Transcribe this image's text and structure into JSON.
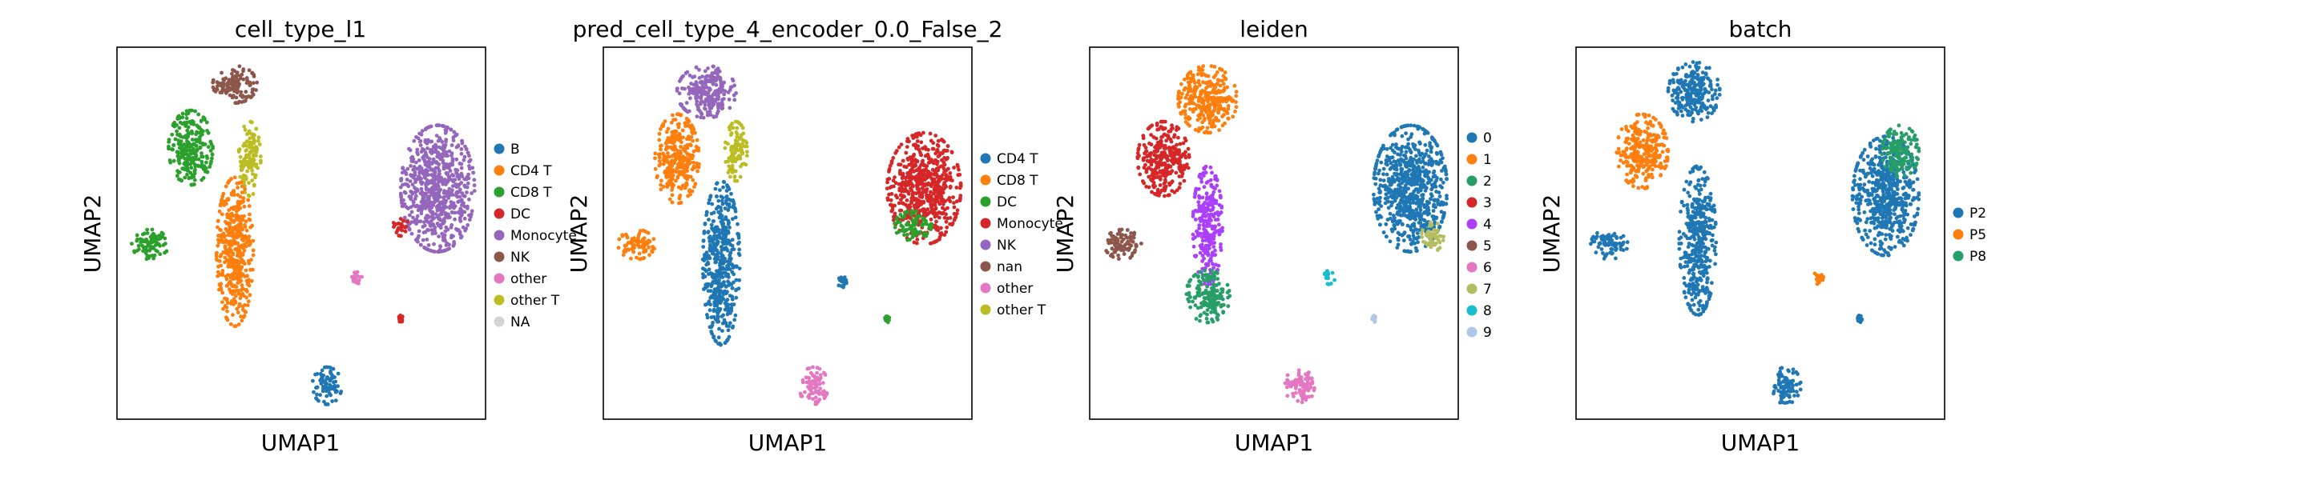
{
  "chart_data": [
    {
      "type": "scatter",
      "title": "cell_type_l1",
      "xlabel": "UMAP1",
      "ylabel": "UMAP2",
      "legend": "right",
      "grid": false,
      "categories": [
        {
          "name": "B",
          "color": "#1f77b4"
        },
        {
          "name": "CD4 T",
          "color": "#ff7f0e"
        },
        {
          "name": "CD8 T",
          "color": "#2ca02c"
        },
        {
          "name": "DC",
          "color": "#d62728"
        },
        {
          "name": "Monocyte",
          "color": "#9467bd"
        },
        {
          "name": "NK",
          "color": "#8c564b"
        },
        {
          "name": "other",
          "color": "#e377c2"
        },
        {
          "name": "other T",
          "color": "#bcbd22"
        },
        {
          "name": "NA",
          "color": "#d3d3d3"
        }
      ],
      "clusters": [
        {
          "label": "NK",
          "x": 0.32,
          "y": 0.9,
          "rx": 0.06,
          "ry": 0.05
        },
        {
          "label": "CD8 T",
          "x": 0.2,
          "y": 0.73,
          "rx": 0.06,
          "ry": 0.1
        },
        {
          "label": "other T",
          "x": 0.36,
          "y": 0.7,
          "rx": 0.03,
          "ry": 0.1
        },
        {
          "label": "CD4 T",
          "x": 0.32,
          "y": 0.45,
          "rx": 0.05,
          "ry": 0.2
        },
        {
          "label": "CD8 T",
          "x": 0.09,
          "y": 0.47,
          "rx": 0.05,
          "ry": 0.04
        },
        {
          "label": "Monocyte",
          "x": 0.87,
          "y": 0.62,
          "rx": 0.1,
          "ry": 0.17
        },
        {
          "label": "DC",
          "x": 0.77,
          "y": 0.52,
          "rx": 0.02,
          "ry": 0.03
        },
        {
          "label": "other",
          "x": 0.65,
          "y": 0.38,
          "rx": 0.015,
          "ry": 0.02
        },
        {
          "label": "DC",
          "x": 0.77,
          "y": 0.27,
          "rx": 0.006,
          "ry": 0.01
        },
        {
          "label": "B",
          "x": 0.57,
          "y": 0.09,
          "rx": 0.04,
          "ry": 0.05
        }
      ]
    },
    {
      "type": "scatter",
      "title": "pred_cell_type_4_encoder_0.0_False_2",
      "xlabel": "UMAP1",
      "ylabel": "UMAP2",
      "legend": "right",
      "grid": false,
      "categories": [
        {
          "name": "CD4 T",
          "color": "#1f77b4"
        },
        {
          "name": "CD8 T",
          "color": "#ff7f0e"
        },
        {
          "name": "DC",
          "color": "#2ca02c"
        },
        {
          "name": "Monocyte",
          "color": "#d62728"
        },
        {
          "name": "NK",
          "color": "#9467bd"
        },
        {
          "name": "nan",
          "color": "#8c564b"
        },
        {
          "name": "other",
          "color": "#e377c2"
        },
        {
          "name": "other T",
          "color": "#bcbd22"
        }
      ],
      "clusters": [
        {
          "label": "NK",
          "x": 0.28,
          "y": 0.88,
          "rx": 0.08,
          "ry": 0.07
        },
        {
          "label": "CD8 T",
          "x": 0.2,
          "y": 0.7,
          "rx": 0.06,
          "ry": 0.12
        },
        {
          "label": "other T",
          "x": 0.36,
          "y": 0.72,
          "rx": 0.03,
          "ry": 0.08
        },
        {
          "label": "CD4 T",
          "x": 0.32,
          "y": 0.42,
          "rx": 0.05,
          "ry": 0.22
        },
        {
          "label": "CD8 T",
          "x": 0.09,
          "y": 0.47,
          "rx": 0.05,
          "ry": 0.04
        },
        {
          "label": "Monocyte",
          "x": 0.87,
          "y": 0.62,
          "rx": 0.1,
          "ry": 0.15
        },
        {
          "label": "DC",
          "x": 0.84,
          "y": 0.52,
          "rx": 0.05,
          "ry": 0.04
        },
        {
          "label": "CD4 T",
          "x": 0.65,
          "y": 0.37,
          "rx": 0.015,
          "ry": 0.02
        },
        {
          "label": "DC",
          "x": 0.77,
          "y": 0.27,
          "rx": 0.006,
          "ry": 0.01
        },
        {
          "label": "other",
          "x": 0.57,
          "y": 0.09,
          "rx": 0.04,
          "ry": 0.05
        }
      ]
    },
    {
      "type": "scatter",
      "title": "leiden",
      "xlabel": "UMAP1",
      "ylabel": "UMAP2",
      "legend": "right",
      "grid": false,
      "categories": [
        {
          "name": "0",
          "color": "#1f77b4"
        },
        {
          "name": "1",
          "color": "#ff7f0e"
        },
        {
          "name": "2",
          "color": "#279e68"
        },
        {
          "name": "3",
          "color": "#d62728"
        },
        {
          "name": "4",
          "color": "#aa40fc"
        },
        {
          "name": "5",
          "color": "#8c564b"
        },
        {
          "name": "6",
          "color": "#e377c2"
        },
        {
          "name": "7",
          "color": "#b5bd61"
        },
        {
          "name": "8",
          "color": "#17becf"
        },
        {
          "name": "9",
          "color": "#aec7e8"
        }
      ],
      "clusters": [
        {
          "label": "1",
          "x": 0.32,
          "y": 0.86,
          "rx": 0.08,
          "ry": 0.09
        },
        {
          "label": "3",
          "x": 0.2,
          "y": 0.7,
          "rx": 0.07,
          "ry": 0.1
        },
        {
          "label": "4",
          "x": 0.32,
          "y": 0.52,
          "rx": 0.04,
          "ry": 0.16
        },
        {
          "label": "2",
          "x": 0.32,
          "y": 0.33,
          "rx": 0.06,
          "ry": 0.07
        },
        {
          "label": "5",
          "x": 0.09,
          "y": 0.47,
          "rx": 0.05,
          "ry": 0.04
        },
        {
          "label": "0",
          "x": 0.87,
          "y": 0.62,
          "rx": 0.1,
          "ry": 0.17
        },
        {
          "label": "7",
          "x": 0.93,
          "y": 0.49,
          "rx": 0.03,
          "ry": 0.04
        },
        {
          "label": "8",
          "x": 0.65,
          "y": 0.38,
          "rx": 0.015,
          "ry": 0.02
        },
        {
          "label": "9",
          "x": 0.77,
          "y": 0.27,
          "rx": 0.006,
          "ry": 0.01
        },
        {
          "label": "6",
          "x": 0.57,
          "y": 0.09,
          "rx": 0.04,
          "ry": 0.05
        }
      ]
    },
    {
      "type": "scatter",
      "title": "batch",
      "xlabel": "UMAP1",
      "ylabel": "UMAP2",
      "legend": "right",
      "grid": false,
      "categories": [
        {
          "name": "P2",
          "color": "#1f77b4"
        },
        {
          "name": "P5",
          "color": "#ff7f0e"
        },
        {
          "name": "P8",
          "color": "#279e68"
        }
      ],
      "clusters": [
        {
          "label": "P2",
          "x": 0.32,
          "y": 0.88,
          "rx": 0.07,
          "ry": 0.08
        },
        {
          "label": "P5",
          "x": 0.18,
          "y": 0.72,
          "rx": 0.07,
          "ry": 0.1
        },
        {
          "label": "P2",
          "x": 0.33,
          "y": 0.48,
          "rx": 0.05,
          "ry": 0.2
        },
        {
          "label": "P2",
          "x": 0.09,
          "y": 0.47,
          "rx": 0.05,
          "ry": 0.04
        },
        {
          "label": "P2",
          "x": 0.84,
          "y": 0.6,
          "rx": 0.09,
          "ry": 0.16
        },
        {
          "label": "P8",
          "x": 0.88,
          "y": 0.72,
          "rx": 0.05,
          "ry": 0.07
        },
        {
          "label": "P5",
          "x": 0.66,
          "y": 0.38,
          "rx": 0.015,
          "ry": 0.02
        },
        {
          "label": "P2",
          "x": 0.77,
          "y": 0.27,
          "rx": 0.006,
          "ry": 0.01
        },
        {
          "label": "P2",
          "x": 0.57,
          "y": 0.09,
          "rx": 0.04,
          "ry": 0.05
        }
      ]
    }
  ]
}
